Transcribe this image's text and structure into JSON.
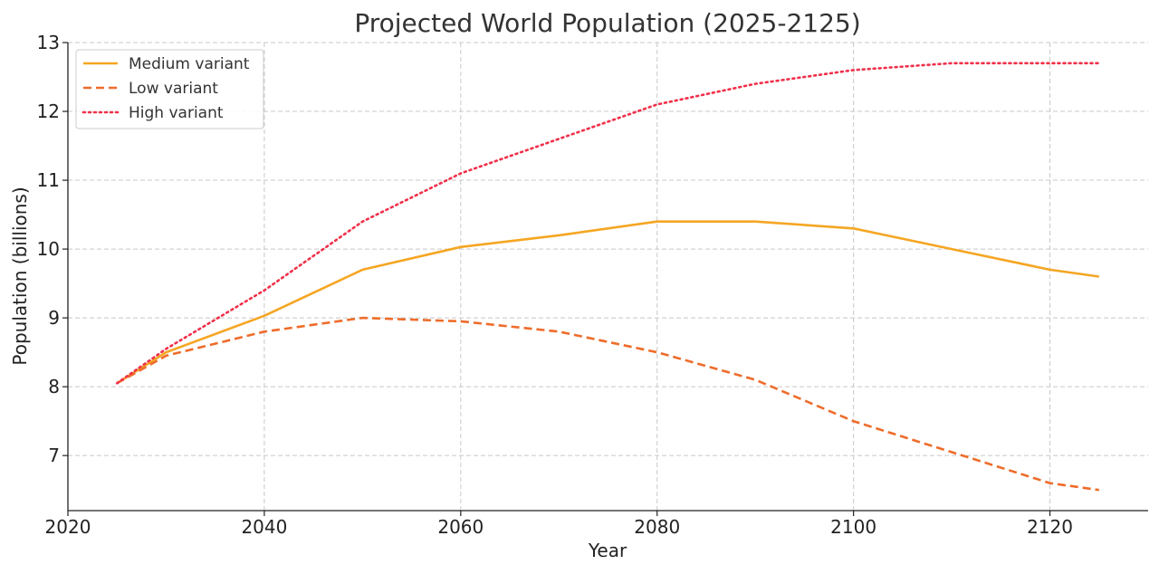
{
  "chart_data": {
    "type": "line",
    "title": "Projected World Population (2025-2125)",
    "xlabel": "Year",
    "ylabel": "Population (billions)",
    "xlim": [
      2020,
      2130
    ],
    "ylim": [
      6.2,
      13
    ],
    "grid": true,
    "legend_position": "top-left",
    "x_ticks": [
      2020,
      2040,
      2060,
      2080,
      2100,
      2120
    ],
    "y_ticks": [
      7,
      8,
      9,
      10,
      11,
      12,
      13
    ],
    "series": [
      {
        "name": "Medium variant",
        "color": "#F5A623",
        "style": "solid",
        "x": [
          2025,
          2030,
          2040,
          2050,
          2060,
          2070,
          2080,
          2090,
          2100,
          2110,
          2120,
          2125
        ],
        "values": [
          8.05,
          8.5,
          9.03,
          9.7,
          10.03,
          10.2,
          10.4,
          10.4,
          10.3,
          10.0,
          9.7,
          9.6
        ]
      },
      {
        "name": "Low variant",
        "color": "#EE6C2B",
        "style": "dashed",
        "x": [
          2025,
          2030,
          2040,
          2050,
          2060,
          2070,
          2080,
          2090,
          2100,
          2110,
          2120,
          2125
        ],
        "values": [
          8.05,
          8.45,
          8.8,
          9.0,
          8.95,
          8.8,
          8.5,
          8.1,
          7.5,
          7.05,
          6.6,
          6.5
        ]
      },
      {
        "name": "High variant",
        "color": "#F0304A",
        "style": "dotted",
        "x": [
          2025,
          2030,
          2040,
          2050,
          2060,
          2070,
          2080,
          2090,
          2100,
          2110,
          2120,
          2125
        ],
        "values": [
          8.05,
          8.55,
          9.4,
          10.4,
          11.1,
          11.6,
          12.1,
          12.4,
          12.6,
          12.7,
          12.7,
          12.7
        ]
      }
    ]
  }
}
